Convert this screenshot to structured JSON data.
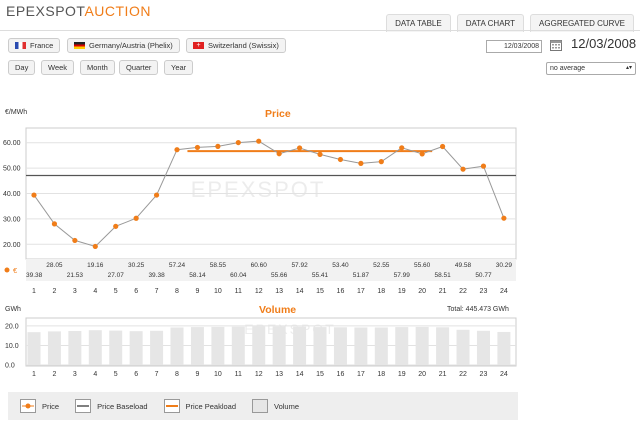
{
  "logo": {
    "part1": "EPEXSPOT",
    "part2": "AUCTION"
  },
  "tabs": [
    "DATA TABLE",
    "DATA CHART",
    "AGGREGATED CURVE"
  ],
  "markets": [
    {
      "label": "France",
      "icon": "flag-france-icon"
    },
    {
      "label": "Germany/Austria (Phelix)",
      "icon": "flag-germany-icon"
    },
    {
      "label": "Switzerland (Swissix)",
      "icon": "flag-switzerland-icon"
    }
  ],
  "periods": [
    "Day",
    "Week",
    "Month",
    "Quarter",
    "Year"
  ],
  "date_input": "12/03/2008",
  "date_display": "12/03/2008",
  "average_select": "no average",
  "watermark": "EPEXSPOT",
  "colors": {
    "accent": "#f07d19",
    "baseload": "#555555",
    "bar": "#e6e6e6"
  },
  "chart_data": [
    {
      "type": "line",
      "title": "Price",
      "ylabel": "€/MWh",
      "x": [
        1,
        2,
        3,
        4,
        5,
        6,
        7,
        8,
        9,
        10,
        11,
        12,
        13,
        14,
        15,
        16,
        17,
        18,
        19,
        20,
        21,
        22,
        23,
        24
      ],
      "ylim": [
        15,
        65
      ],
      "yticks": [
        "20.00",
        "30.00",
        "40.00",
        "50.00",
        "60.00"
      ],
      "series": [
        {
          "name": "Price",
          "values": [
            39.38,
            28.05,
            21.53,
            19.16,
            27.07,
            30.25,
            39.38,
            57.24,
            58.14,
            58.55,
            60.04,
            60.6,
            55.66,
            57.92,
            55.41,
            53.4,
            51.87,
            52.55,
            57.99,
            55.6,
            58.51,
            49.58,
            50.77,
            30.29
          ]
        }
      ],
      "baseload": 47.09,
      "peakload": {
        "value": 56.7,
        "from": 9,
        "to": 20
      },
      "row_label": "€",
      "grid": true
    },
    {
      "type": "bar",
      "title": "Volume",
      "ylabel": "GWh",
      "total_label": "Total: 445.473 GWh",
      "x": [
        1,
        2,
        3,
        4,
        5,
        6,
        7,
        8,
        9,
        10,
        11,
        12,
        13,
        14,
        15,
        16,
        17,
        18,
        19,
        20,
        21,
        22,
        23,
        24
      ],
      "ylim": [
        0,
        22
      ],
      "yticks": [
        "0.0",
        "10.0",
        "20.0"
      ],
      "values": [
        16.8,
        17.2,
        17.4,
        17.8,
        17.6,
        17.3,
        17.5,
        19.2,
        19.4,
        19.5,
        19.6,
        19.8,
        19.7,
        19.6,
        19.4,
        19.3,
        19.2,
        19.2,
        19.4,
        19.5,
        19.3,
        18.0,
        17.5,
        16.9
      ]
    }
  ],
  "legend": [
    "Price",
    "Price Baseload",
    "Price Peakload",
    "Volume"
  ]
}
